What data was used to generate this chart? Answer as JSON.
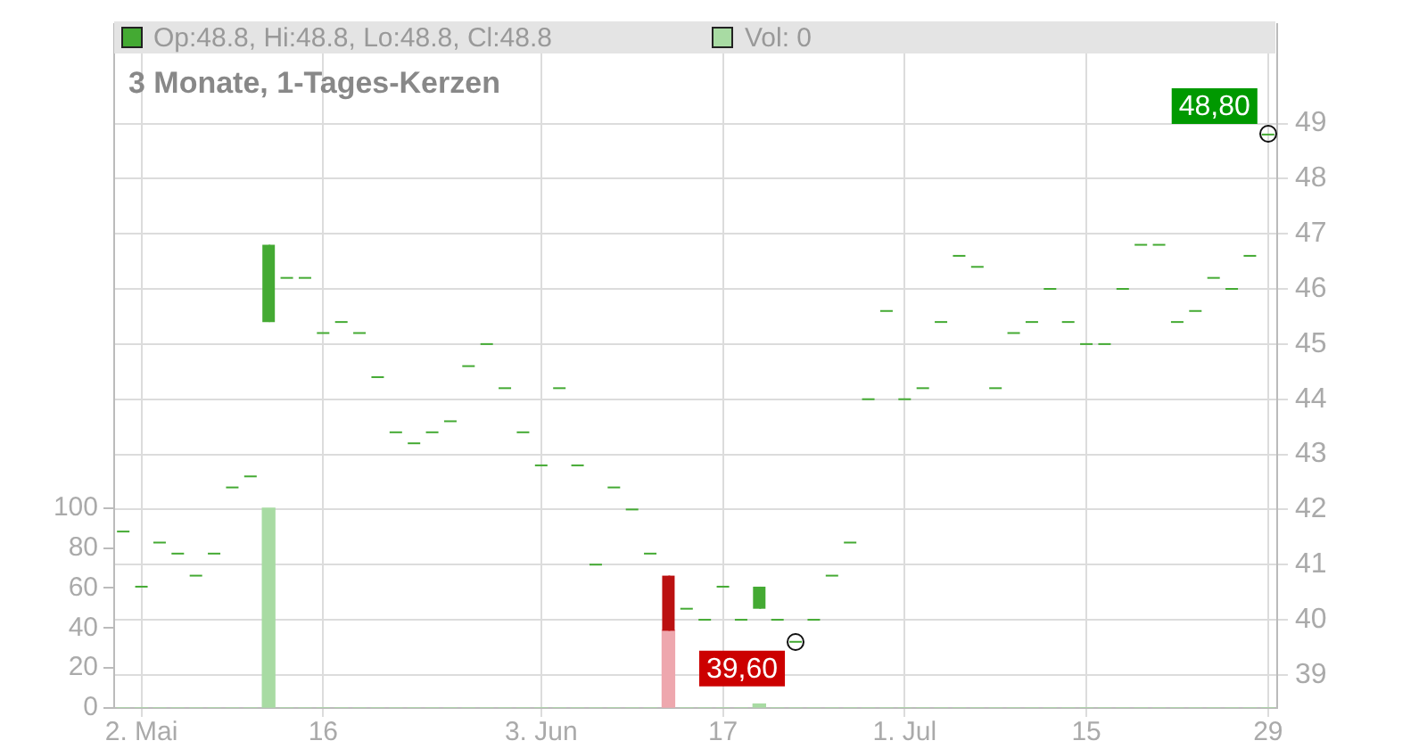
{
  "chart_data": {
    "type": "candlestick",
    "title": "3 Monate, 1-Tages-Kerzen",
    "annotations": [
      "Op:48.8, Hi:48.8, Lo:48.8, Cl:48.8",
      "Vol: 0",
      {
        "text": "48,80",
        "x": "29",
        "y": 48.8
      },
      "39,60"
    ],
    "categories": [
      null,
      "2. Mai",
      null,
      null,
      null,
      null,
      null,
      null,
      null,
      null,
      null,
      "16",
      null,
      null,
      null,
      null,
      null,
      null,
      null,
      null,
      null,
      null,
      null,
      "3. Jun",
      null,
      null,
      null,
      null,
      null,
      null,
      null,
      null,
      null,
      "17",
      null,
      null,
      null,
      null,
      null,
      null,
      null,
      null,
      null,
      "1. Jul",
      null,
      null,
      null,
      null,
      null,
      null,
      null,
      null,
      null,
      "15",
      null,
      null,
      null,
      null,
      null,
      null,
      null,
      null,
      null,
      "29"
    ],
    "series": [
      {
        "type": "candlestick",
        "ohlc": [
          [
            41.6,
            41.6,
            41.6,
            41.6
          ],
          [
            40.6,
            40.6,
            40.6,
            40.6
          ],
          [
            41.4,
            41.4,
            41.4,
            41.4
          ],
          [
            41.2,
            41.2,
            41.2,
            41.2
          ],
          [
            40.8,
            40.8,
            40.8,
            40.8
          ],
          [
            41.2,
            41.2,
            41.2,
            41.2
          ],
          [
            42.4,
            42.4,
            42.4,
            42.4
          ],
          [
            42.6,
            42.6,
            42.6,
            42.6
          ],
          [
            45.4,
            46.8,
            45.4,
            46.8
          ],
          [
            46.2,
            46.2,
            46.2,
            46.2
          ],
          [
            46.2,
            46.2,
            46.2,
            46.2
          ],
          [
            45.2,
            45.2,
            45.2,
            45.2
          ],
          [
            45.4,
            45.4,
            45.4,
            45.4
          ],
          [
            45.2,
            45.2,
            45.2,
            45.2
          ],
          [
            44.4,
            44.4,
            44.4,
            44.4
          ],
          [
            43.4,
            43.4,
            43.4,
            43.4
          ],
          [
            43.2,
            43.2,
            43.2,
            43.2
          ],
          [
            43.4,
            43.4,
            43.4,
            43.4
          ],
          [
            43.6,
            43.6,
            43.6,
            43.6
          ],
          [
            44.6,
            44.6,
            44.6,
            44.6
          ],
          [
            45.0,
            45.0,
            45.0,
            45.0
          ],
          [
            44.2,
            44.2,
            44.2,
            44.2
          ],
          [
            43.4,
            43.4,
            43.4,
            43.4
          ],
          [
            42.8,
            42.8,
            42.8,
            42.8
          ],
          [
            44.2,
            44.2,
            44.2,
            44.2
          ],
          [
            42.8,
            42.8,
            42.8,
            42.8
          ],
          [
            41.0,
            41.0,
            41.0,
            41.0
          ],
          [
            42.4,
            42.4,
            42.4,
            42.4
          ],
          [
            42.0,
            42.0,
            42.0,
            42.0
          ],
          [
            41.2,
            41.2,
            41.2,
            41.2
          ],
          [
            40.8,
            40.8,
            39.8,
            39.8
          ],
          [
            40.2,
            40.2,
            40.2,
            40.2
          ],
          [
            40.0,
            40.0,
            40.0,
            40.0
          ],
          [
            40.6,
            40.6,
            40.6,
            40.6
          ],
          [
            40.0,
            40.0,
            40.0,
            40.0
          ],
          [
            40.2,
            40.6,
            40.2,
            40.6
          ],
          [
            40.0,
            40.0,
            40.0,
            40.0
          ],
          [
            39.6,
            39.6,
            39.6,
            39.6
          ],
          [
            40.0,
            40.0,
            40.0,
            40.0
          ],
          [
            40.8,
            40.8,
            40.8,
            40.8
          ],
          [
            41.4,
            41.4,
            41.4,
            41.4
          ],
          [
            44.0,
            44.0,
            44.0,
            44.0
          ],
          [
            45.6,
            45.6,
            45.6,
            45.6
          ],
          [
            44.0,
            44.0,
            44.0,
            44.0
          ],
          [
            44.2,
            44.2,
            44.2,
            44.2
          ],
          [
            45.4,
            45.4,
            45.4,
            45.4
          ],
          [
            46.6,
            46.6,
            46.6,
            46.6
          ],
          [
            46.4,
            46.4,
            46.4,
            46.4
          ],
          [
            44.2,
            44.2,
            44.2,
            44.2
          ],
          [
            45.2,
            45.2,
            45.2,
            45.2
          ],
          [
            45.4,
            45.4,
            45.4,
            45.4
          ],
          [
            46.0,
            46.0,
            46.0,
            46.0
          ],
          [
            45.4,
            45.4,
            45.4,
            45.4
          ],
          [
            45.0,
            45.0,
            45.0,
            45.0
          ],
          [
            45.0,
            45.0,
            45.0,
            45.0
          ],
          [
            46.0,
            46.0,
            46.0,
            46.0
          ],
          [
            46.8,
            46.8,
            46.8,
            46.8
          ],
          [
            46.8,
            46.8,
            46.8,
            46.8
          ],
          [
            45.4,
            45.4,
            45.4,
            45.4
          ],
          [
            45.6,
            45.6,
            45.6,
            45.6
          ],
          [
            46.2,
            46.2,
            46.2,
            46.2
          ],
          [
            46.0,
            46.0,
            46.0,
            46.0
          ],
          [
            46.6,
            46.6,
            46.6,
            46.6
          ],
          [
            48.8,
            48.8,
            48.8,
            48.8
          ]
        ],
        "colors": [
          "#44aa33",
          "#44aa33",
          "#44aa33",
          "#44aa33",
          "#44aa33",
          "#44aa33",
          "#44aa33",
          "#44aa33",
          "#44aa33",
          "#44aa33",
          "#44aa33",
          "#44aa33",
          "#44aa33",
          "#44aa33",
          "#44aa33",
          "#44aa33",
          "#44aa33",
          "#44aa33",
          "#44aa33",
          "#44aa33",
          "#44aa33",
          "#44aa33",
          "#44aa33",
          "#44aa33",
          "#44aa33",
          "#44aa33",
          "#44aa33",
          "#44aa33",
          "#44aa33",
          "#44aa33",
          "#bb1111",
          "#44aa33",
          "#44aa33",
          "#44aa33",
          "#44aa33",
          "#44aa33",
          "#44aa33",
          "#44aa33",
          "#44aa33",
          "#44aa33",
          "#44aa33",
          "#44aa33",
          "#44aa33",
          "#44aa33",
          "#44aa33",
          "#44aa33",
          "#44aa33",
          "#44aa33",
          "#44aa33",
          "#44aa33",
          "#44aa33",
          "#44aa33",
          "#44aa33",
          "#44aa33",
          "#44aa33",
          "#44aa33",
          "#44aa33",
          "#44aa33",
          "#44aa33",
          "#44aa33",
          "#44aa33",
          "#44aa33",
          "#44aa33",
          "#44aa33"
        ]
      },
      {
        "type": "bar",
        "axis": "y2",
        "values": [
          0,
          0,
          0,
          0,
          0,
          0,
          0,
          0,
          100,
          0,
          0,
          0,
          0,
          0,
          0,
          0,
          0,
          0,
          0,
          0,
          0,
          0,
          0,
          0,
          0,
          0,
          0,
          0,
          0,
          0,
          39,
          0,
          0,
          0,
          0,
          2,
          0,
          0,
          0,
          0,
          0,
          0,
          0,
          0,
          0,
          0,
          0,
          0,
          0,
          0,
          0,
          0,
          0,
          0,
          0,
          0,
          0,
          0,
          0,
          0,
          0,
          0,
          0,
          0
        ],
        "colors": [
          "#a8dba3",
          "#a8dba3",
          "#a8dba3",
          "#a8dba3",
          "#a8dba3",
          "#a8dba3",
          "#a8dba3",
          "#a8dba3",
          "#a8dba3",
          "#a8dba3",
          "#a8dba3",
          "#a8dba3",
          "#a8dba3",
          "#a8dba3",
          "#a8dba3",
          "#a8dba3",
          "#a8dba3",
          "#a8dba3",
          "#a8dba3",
          "#a8dba3",
          "#a8dba3",
          "#a8dba3",
          "#a8dba3",
          "#a8dba3",
          "#a8dba3",
          "#a8dba3",
          "#a8dba3",
          "#a8dba3",
          "#a8dba3",
          "#a8dba3",
          "#eea7ae",
          "#a8dba3",
          "#a8dba3",
          "#a8dba3",
          "#a8dba3",
          "#a8dba3",
          "#a8dba3",
          "#a8dba3",
          "#a8dba3",
          "#a8dba3",
          "#a8dba3",
          "#a8dba3",
          "#a8dba3",
          "#a8dba3",
          "#a8dba3",
          "#a8dba3",
          "#a8dba3",
          "#a8dba3",
          "#a8dba3",
          "#a8dba3",
          "#a8dba3",
          "#a8dba3",
          "#a8dba3",
          "#a8dba3",
          "#a8dba3",
          "#a8dba3",
          "#a8dba3",
          "#a8dba3",
          "#a8dba3",
          "#a8dba3",
          "#a8dba3",
          "#a8dba3",
          "#a8dba3",
          "#a8dba3"
        ]
      }
    ],
    "ylim": [
      38.4,
      50.8
    ],
    "yticks": [
      39,
      40,
      41,
      42,
      43,
      44,
      45,
      46,
      47,
      48,
      49
    ],
    "y2lim": [
      0,
      342
    ],
    "y2ticks": [
      0,
      20,
      40,
      60,
      80,
      100
    ],
    "grid": true,
    "legend": false
  }
}
